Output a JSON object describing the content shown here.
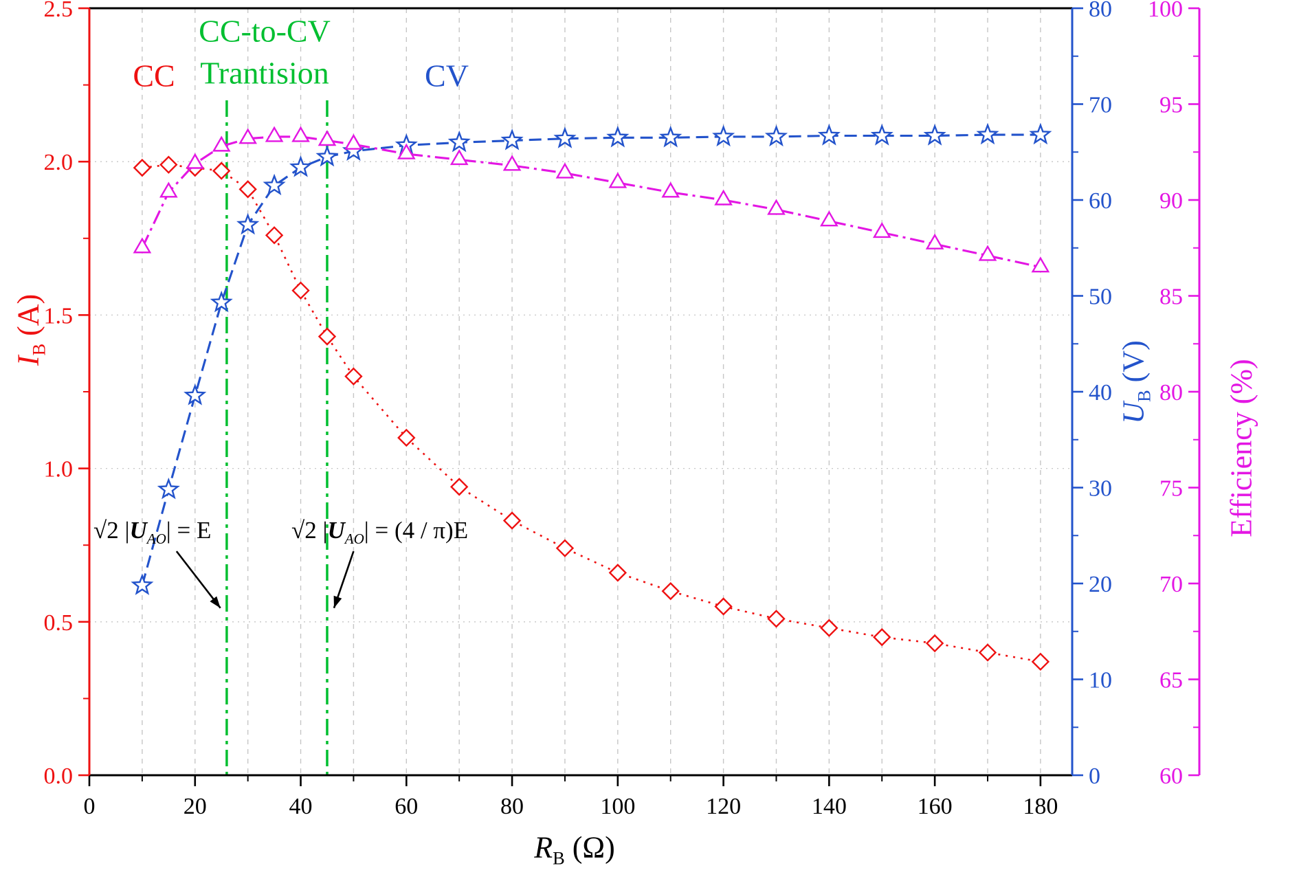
{
  "chart_data": {
    "type": "line",
    "axes": {
      "x": {
        "label": {
          "var": "R",
          "sub": "B",
          "unit": " (Ω)"
        },
        "range": [
          0,
          186
        ],
        "ticks": [
          0,
          20,
          40,
          60,
          80,
          100,
          120,
          140,
          160,
          180
        ],
        "minor_step": 10,
        "color": "#000000"
      },
      "left": {
        "label": {
          "var": "I",
          "sub": "B",
          "unit": " (A)"
        },
        "range": [
          0,
          2.5
        ],
        "ticks": [
          0,
          0.5,
          1,
          1.5,
          2,
          2.5
        ],
        "color": "#ee1111"
      },
      "right_voltage": {
        "label": {
          "var": "U",
          "sub": "B",
          "unit": " (V)"
        },
        "range": [
          0,
          80
        ],
        "ticks": [
          0,
          10,
          20,
          30,
          40,
          50,
          60,
          70,
          80
        ],
        "color": "#2353cb"
      },
      "right_efficiency": {
        "label": {
          "text": "Efficiency (%)"
        },
        "range": [
          60,
          100
        ],
        "ticks": [
          60,
          65,
          70,
          75,
          80,
          85,
          90,
          95,
          100
        ],
        "color": "#e316e3"
      }
    },
    "grid": {
      "vertical_step": 10,
      "horizontal_lines": [
        0.5,
        1,
        1.5,
        2
      ],
      "color": "#c6c6c6"
    },
    "x": [
      10,
      15,
      20,
      25,
      30,
      35,
      40,
      45,
      50,
      60,
      70,
      80,
      90,
      100,
      110,
      120,
      130,
      140,
      150,
      160,
      170,
      180
    ],
    "series": [
      {
        "name": "IB",
        "axis": "left",
        "marker": "diamond",
        "dash": "dotted",
        "color": "#ee1111",
        "values": [
          1.98,
          1.99,
          1.98,
          1.97,
          1.91,
          1.76,
          1.58,
          1.43,
          1.3,
          1.1,
          0.94,
          0.83,
          0.74,
          0.66,
          0.6,
          0.55,
          0.51,
          0.48,
          0.45,
          0.43,
          0.4,
          0.37
        ]
      },
      {
        "name": "UB",
        "axis": "right_voltage",
        "marker": "star",
        "dash": "dashed",
        "color": "#2353cb",
        "values": [
          19.8,
          29.8,
          39.6,
          49.3,
          57.4,
          61.5,
          63.4,
          64.5,
          65.1,
          65.7,
          66.0,
          66.2,
          66.4,
          66.5,
          66.5,
          66.6,
          66.6,
          66.7,
          66.7,
          66.7,
          66.8,
          66.8
        ]
      },
      {
        "name": "Efficiency",
        "axis": "right_efficiency",
        "marker": "triangle",
        "dash": "dashdot",
        "color": "#e316e3",
        "values": [
          87.5,
          90.4,
          91.9,
          92.8,
          93.2,
          93.3,
          93.3,
          93.1,
          92.9,
          92.4,
          92.1,
          91.8,
          91.4,
          90.9,
          90.4,
          90.0,
          89.5,
          88.9,
          88.3,
          87.7,
          87.1,
          86.5
        ]
      }
    ],
    "vlines": {
      "color": "#00bf30",
      "x": [
        26,
        45
      ]
    },
    "annotations": {
      "cc_label": "CC",
      "transition_line1": "CC-to-CV",
      "transition_line2": "Trantision",
      "cv_label": "CV",
      "formula1": {
        "pre": "√2 |",
        "var": "U",
        "sub": "AO",
        "post": "| = E"
      },
      "formula2": {
        "pre": "√2 |",
        "var": "U",
        "sub": "AO",
        "post": "| = (4 / π)E"
      },
      "arrows": [
        {
          "from": [
            16.5,
            0.73
          ],
          "to": [
            24.8,
            0.545
          ]
        },
        {
          "from": [
            50.0,
            0.73
          ],
          "to": [
            46.3,
            0.545
          ]
        }
      ]
    }
  }
}
